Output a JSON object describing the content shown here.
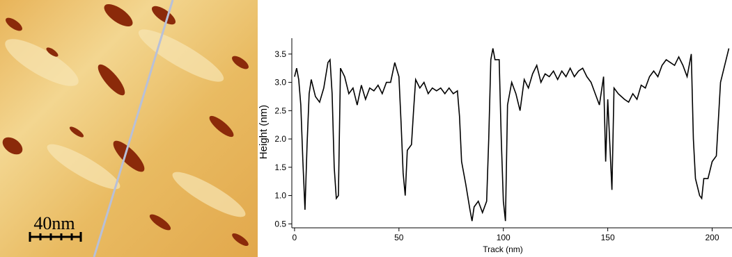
{
  "image": {
    "scale_bar_label": "40nm"
  },
  "chart_data": {
    "type": "line",
    "x_label": "Track (nm)",
    "y_label": "Height (nm)",
    "xlim": [
      -1.3,
      209.5
    ],
    "ylim": [
      0.43,
      3.78
    ],
    "xticks": [
      0,
      50,
      100,
      150,
      200
    ],
    "yticks": [
      0.5,
      {
        "value": 1,
        "label": "1.0"
      },
      1.5,
      {
        "value": 2,
        "label": "2.0"
      },
      2.5,
      {
        "value": 3,
        "label": "3.0"
      },
      3.5
    ],
    "series": [
      {
        "color": "#000000",
        "x": [
          0,
          1,
          2,
          3,
          4,
          5,
          6,
          7,
          8,
          10,
          12,
          14,
          16,
          17,
          18,
          19,
          20,
          21,
          22,
          24,
          26,
          28,
          30,
          32,
          34,
          36,
          38,
          40,
          42,
          44,
          46,
          48,
          50,
          51,
          52,
          53,
          54,
          56,
          57,
          58,
          60,
          62,
          64,
          66,
          68,
          70,
          72,
          74,
          76,
          78,
          79,
          80,
          82,
          84,
          85,
          86,
          88,
          90,
          92,
          93,
          94,
          95,
          96,
          98,
          99,
          100,
          101,
          102,
          104,
          106,
          108,
          110,
          112,
          114,
          116,
          118,
          120,
          122,
          124,
          126,
          128,
          130,
          132,
          134,
          136,
          138,
          140,
          142,
          144,
          146,
          148,
          149,
          150,
          152,
          153,
          155,
          158,
          160,
          162,
          164,
          166,
          168,
          170,
          172,
          174,
          176,
          178,
          180,
          182,
          184,
          186,
          188,
          190,
          191,
          192,
          194,
          195,
          196,
          198,
          200,
          202,
          204,
          206,
          208
        ],
        "values": [
          3.1,
          3.25,
          3.05,
          2.6,
          1.6,
          0.75,
          1.9,
          2.8,
          3.05,
          2.75,
          2.65,
          2.9,
          3.35,
          3.4,
          2.8,
          1.5,
          0.95,
          1.0,
          3.25,
          3.1,
          2.8,
          2.9,
          2.6,
          2.95,
          2.7,
          2.9,
          2.85,
          2.95,
          2.8,
          3.0,
          3.0,
          3.35,
          3.1,
          2.3,
          1.4,
          1.0,
          1.8,
          1.9,
          2.5,
          3.05,
          2.9,
          3.0,
          2.8,
          2.9,
          2.85,
          2.9,
          2.8,
          2.9,
          2.8,
          2.85,
          2.4,
          1.6,
          1.2,
          0.75,
          0.55,
          0.8,
          0.9,
          0.7,
          0.9,
          2.0,
          3.4,
          3.6,
          3.4,
          3.4,
          2.0,
          0.9,
          0.55,
          2.6,
          3.0,
          2.8,
          2.5,
          3.05,
          2.9,
          3.15,
          3.3,
          3.0,
          3.15,
          3.1,
          3.2,
          3.05,
          3.2,
          3.1,
          3.25,
          3.1,
          3.2,
          3.25,
          3.1,
          3.0,
          2.8,
          2.6,
          3.1,
          1.6,
          2.7,
          1.1,
          2.9,
          2.8,
          2.7,
          2.65,
          2.8,
          2.7,
          2.95,
          2.9,
          3.1,
          3.2,
          3.1,
          3.3,
          3.4,
          3.35,
          3.3,
          3.45,
          3.3,
          3.1,
          3.5,
          2.0,
          1.3,
          1.0,
          0.95,
          1.3,
          1.3,
          1.6,
          1.7,
          3.0,
          3.3,
          3.6
        ]
      }
    ]
  }
}
